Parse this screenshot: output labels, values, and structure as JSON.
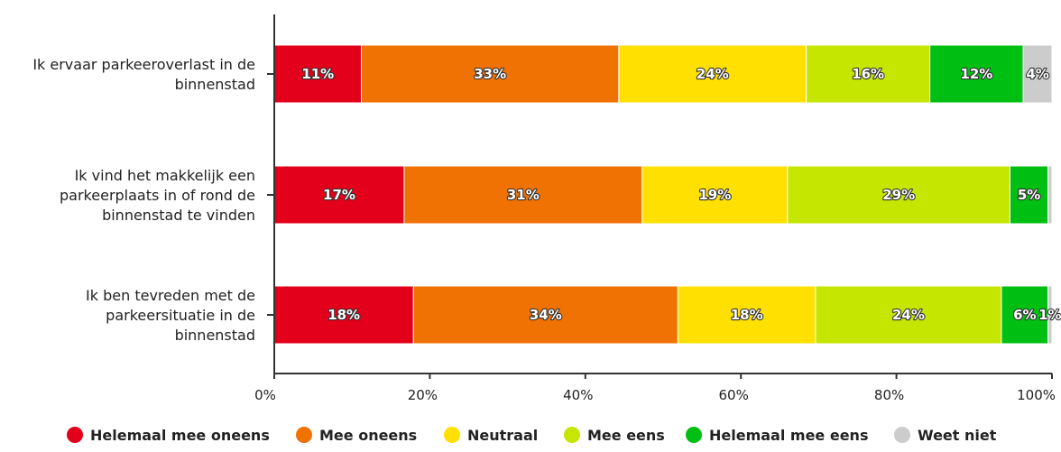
{
  "chart_data": {
    "type": "bar",
    "orientation": "horizontal",
    "stacked": true,
    "title": "",
    "categories": [
      [
        "Ik ervaar parkeeroverlast in de",
        "binnenstad"
      ],
      [
        "Ik vind het makkelijk een",
        "parkeerplaats in of rond de",
        "binnenstad te vinden"
      ],
      [
        "Ik ben tevreden met de",
        "parkeersituatie in de",
        "binnenstad"
      ]
    ],
    "series": [
      {
        "name": "Helemaal mee oneens",
        "color": "#e3001b",
        "values": [
          11.2,
          16.7,
          17.9
        ],
        "labels": [
          "11%",
          "17%",
          "18%"
        ]
      },
      {
        "name": "Mee oneens",
        "color": "#ef7203",
        "values": [
          33.1,
          30.6,
          34.0
        ],
        "labels": [
          "33%",
          "31%",
          "34%"
        ]
      },
      {
        "name": "Neutraal",
        "color": "#ffe000",
        "values": [
          24.1,
          18.7,
          17.7
        ],
        "labels": [
          "24%",
          "19%",
          "18%"
        ]
      },
      {
        "name": "Mee eens",
        "color": "#c5e600",
        "values": [
          15.9,
          28.6,
          23.9
        ],
        "labels": [
          "16%",
          "29%",
          "24%"
        ]
      },
      {
        "name": "Helemaal mee eens",
        "color": "#00bf13",
        "values": [
          12.0,
          4.9,
          6.0
        ],
        "labels": [
          "12%",
          "5%",
          "6%"
        ]
      },
      {
        "name": "Weet niet",
        "color": "#cccccc",
        "values": [
          3.7,
          0.5,
          0.5
        ],
        "labels": [
          "4%",
          "",
          "1%"
        ]
      }
    ],
    "xaxis": {
      "ticks": [
        "0%",
        "20%",
        "40%",
        "60%",
        "80%",
        "100%"
      ],
      "range": [
        0,
        100
      ]
    },
    "legend": {
      "position": "bottom"
    },
    "grid": false
  }
}
